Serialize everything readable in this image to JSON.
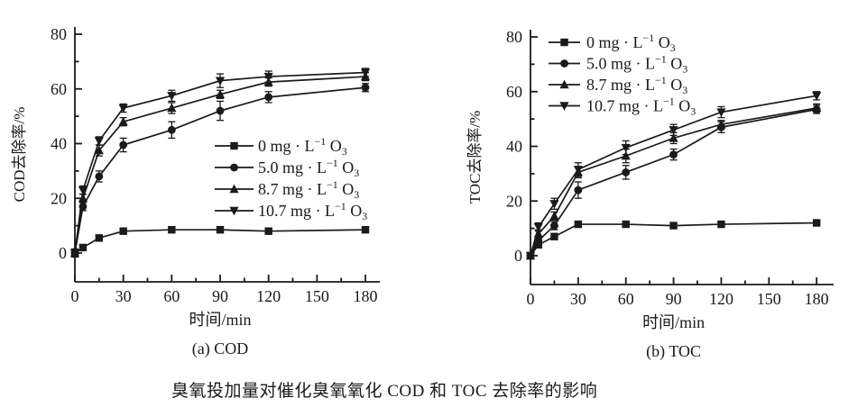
{
  "colors": {
    "ink": "#1a1a1a",
    "background": "#ffffff"
  },
  "caption": {
    "text": "臭氧投加量对催化臭氧氧化 COD 和 TOC 去除率的影响"
  },
  "chart_data": [
    {
      "id": "cod",
      "type": "line",
      "panel_label": "(a) COD",
      "xlabel": "时间/min",
      "ylabel": "COD去除率/%",
      "xlim": [
        0,
        190
      ],
      "ylim": [
        -10,
        83
      ],
      "xticks": [
        0,
        30,
        60,
        90,
        120,
        150,
        180
      ],
      "yticks": [
        0,
        20,
        40,
        60,
        80
      ],
      "x_minor_ticks": [
        15,
        45,
        75,
        105,
        135,
        165
      ],
      "y_minor_ticks": [
        10,
        30,
        50,
        70
      ],
      "grid": false,
      "legend_position": "inside-middle-right",
      "x": [
        0,
        5,
        15,
        30,
        60,
        90,
        120,
        180
      ],
      "series": [
        {
          "name": "0 mg·L⁻¹ O₃",
          "marker": "square",
          "label_parts": {
            "pre": "0 mg · L",
            "sup": "−1",
            "mid": " O",
            "sub": "3"
          },
          "values": [
            0,
            2,
            5.5,
            8,
            8.5,
            8.5,
            8,
            8.5
          ],
          "errors": [
            1.5,
            0.8,
            0.8,
            0.8,
            0.8,
            0.8,
            0.8,
            0.8
          ]
        },
        {
          "name": "5.0 mg·L⁻¹ O₃",
          "marker": "circle",
          "label_parts": {
            "pre": "5.0 mg · L",
            "sup": "−1",
            "mid": " O",
            "sub": "3"
          },
          "values": [
            0,
            17,
            28,
            39.5,
            45,
            52,
            57,
            60.5
          ],
          "errors": [
            1,
            1.5,
            2,
            2.5,
            3,
            3.5,
            2,
            1.5
          ]
        },
        {
          "name": "8.7 mg·L⁻¹ O₃",
          "marker": "triangle-up",
          "label_parts": {
            "pre": "8.7 mg · L",
            "sup": "−1",
            "mid": " O",
            "sub": "3"
          },
          "values": [
            0,
            20,
            37.5,
            48,
            53,
            58,
            62.5,
            64.5
          ],
          "errors": [
            1,
            1.5,
            2,
            1.5,
            2,
            1.5,
            1.5,
            1.5
          ]
        },
        {
          "name": "10.7 mg·L⁻¹ O₃",
          "marker": "triangle-down",
          "label_parts": {
            "pre": "10.7 mg · L",
            "sup": "−1",
            "mid": " O",
            "sub": "3"
          },
          "values": [
            0,
            23,
            41,
            53,
            57.5,
            63,
            64.5,
            66
          ],
          "errors": [
            1,
            1.5,
            1.5,
            1.5,
            2,
            2.5,
            2,
            1.5
          ]
        }
      ]
    },
    {
      "id": "toc",
      "type": "line",
      "panel_label": "(b) TOC",
      "xlabel": "时间/min",
      "ylabel": "TOC去除率/%",
      "xlim": [
        0,
        190
      ],
      "ylim": [
        -10,
        83
      ],
      "xticks": [
        0,
        30,
        60,
        90,
        120,
        150,
        180
      ],
      "yticks": [
        0,
        20,
        40,
        60,
        80
      ],
      "x_minor_ticks": [
        15,
        45,
        75,
        105,
        135,
        165
      ],
      "y_minor_ticks": [
        10,
        30,
        50,
        70
      ],
      "grid": false,
      "legend_position": "inside-top-left",
      "x": [
        0,
        5,
        15,
        30,
        60,
        90,
        120,
        180
      ],
      "series": [
        {
          "name": "0 mg·L⁻¹ O₃",
          "marker": "square",
          "label_parts": {
            "pre": "0 mg · L",
            "sup": "−1",
            "mid": " O",
            "sub": "3"
          },
          "values": [
            0,
            4,
            7,
            11.5,
            11.5,
            11,
            11.5,
            12
          ],
          "errors": [
            1,
            0.8,
            0.8,
            0.8,
            0.8,
            0.8,
            0.8,
            0.8
          ]
        },
        {
          "name": "5.0 mg·L⁻¹ O₃",
          "marker": "circle",
          "label_parts": {
            "pre": "5.0 mg · L",
            "sup": "−1",
            "mid": " O",
            "sub": "3"
          },
          "values": [
            0,
            5.5,
            11,
            24,
            30.5,
            37,
            47,
            53.5
          ],
          "errors": [
            1,
            1,
            1.5,
            3,
            2.5,
            2,
            2,
            1.5
          ]
        },
        {
          "name": "8.7 mg·L⁻¹ O₃",
          "marker": "triangle-up",
          "label_parts": {
            "pre": "8.7 mg · L",
            "sup": "−1",
            "mid": " O",
            "sub": "3"
          },
          "values": [
            0,
            8,
            14.5,
            30.5,
            36.5,
            43,
            48,
            54
          ],
          "errors": [
            1,
            1.5,
            1.5,
            2,
            2.5,
            2,
            1.5,
            1.5
          ]
        },
        {
          "name": "10.7 mg·L⁻¹ O₃",
          "marker": "triangle-down",
          "label_parts": {
            "pre": "10.7 mg · L",
            "sup": "−1",
            "mid": " O",
            "sub": "3"
          },
          "values": [
            0,
            10.5,
            19,
            31.5,
            39.5,
            46,
            52.5,
            58.5
          ],
          "errors": [
            1,
            1.5,
            2,
            2.5,
            2.5,
            2,
            2,
            1.5
          ]
        }
      ]
    }
  ]
}
